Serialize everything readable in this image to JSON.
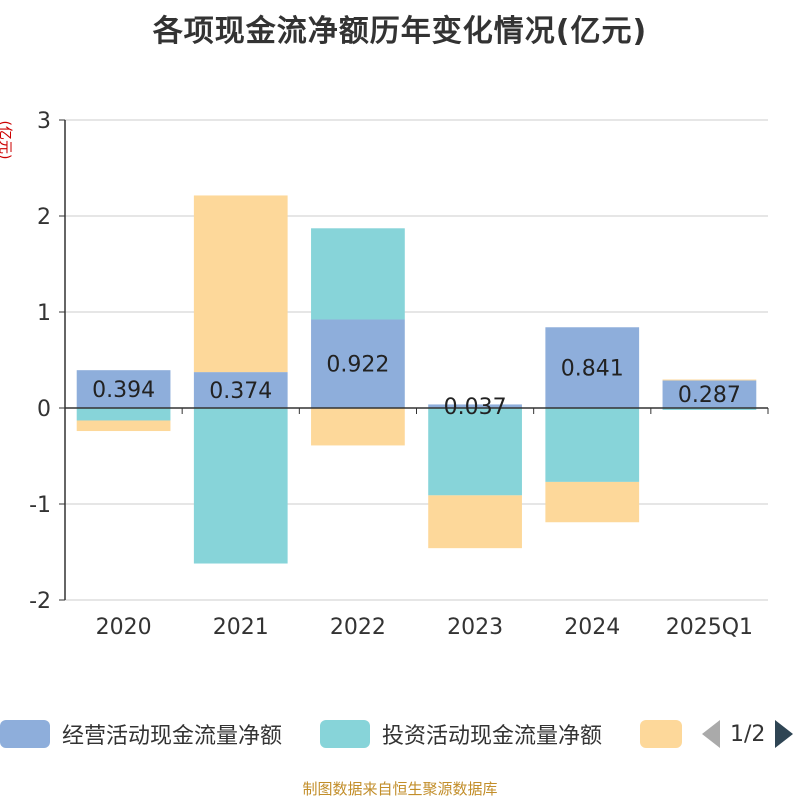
{
  "title": "各项现金流净额历年变化情况(亿元)",
  "unit_label": "(亿元)",
  "source": "制图数据来自恒生聚源数据库",
  "legend": {
    "items": [
      {
        "label": "经营活动现金流量净额",
        "color": "#8eaedb"
      },
      {
        "label": "投资活动现金流量净额",
        "color": "#87d4d9"
      },
      {
        "label": "",
        "color": "#fdd89a"
      }
    ],
    "page": "1/2"
  },
  "chart_data": {
    "type": "bar",
    "stacked": true,
    "categories": [
      "2020",
      "2021",
      "2022",
      "2023",
      "2024",
      "2025Q1"
    ],
    "ylim": [
      -2,
      3
    ],
    "yticks": [
      "-2",
      "-1",
      "0",
      "1",
      "2",
      "3"
    ],
    "series": [
      {
        "name": "经营活动现金流量净额",
        "color": "#8eaedb",
        "values": [
          0.394,
          0.374,
          0.922,
          0.037,
          0.841,
          0.287
        ],
        "labels": [
          "0.394",
          "0.374",
          "0.922",
          "0.037",
          "0.841",
          "0.287"
        ]
      },
      {
        "name": "投资活动现金流量净额",
        "color": "#87d4d9",
        "values": [
          -0.13,
          -1.62,
          0.95,
          -0.91,
          -0.77,
          -0.02
        ]
      },
      {
        "name": "",
        "color": "#fdd89a",
        "values": [
          -0.11,
          1.84,
          -0.39,
          -0.55,
          -0.42,
          0.01
        ]
      }
    ],
    "grid": true
  }
}
